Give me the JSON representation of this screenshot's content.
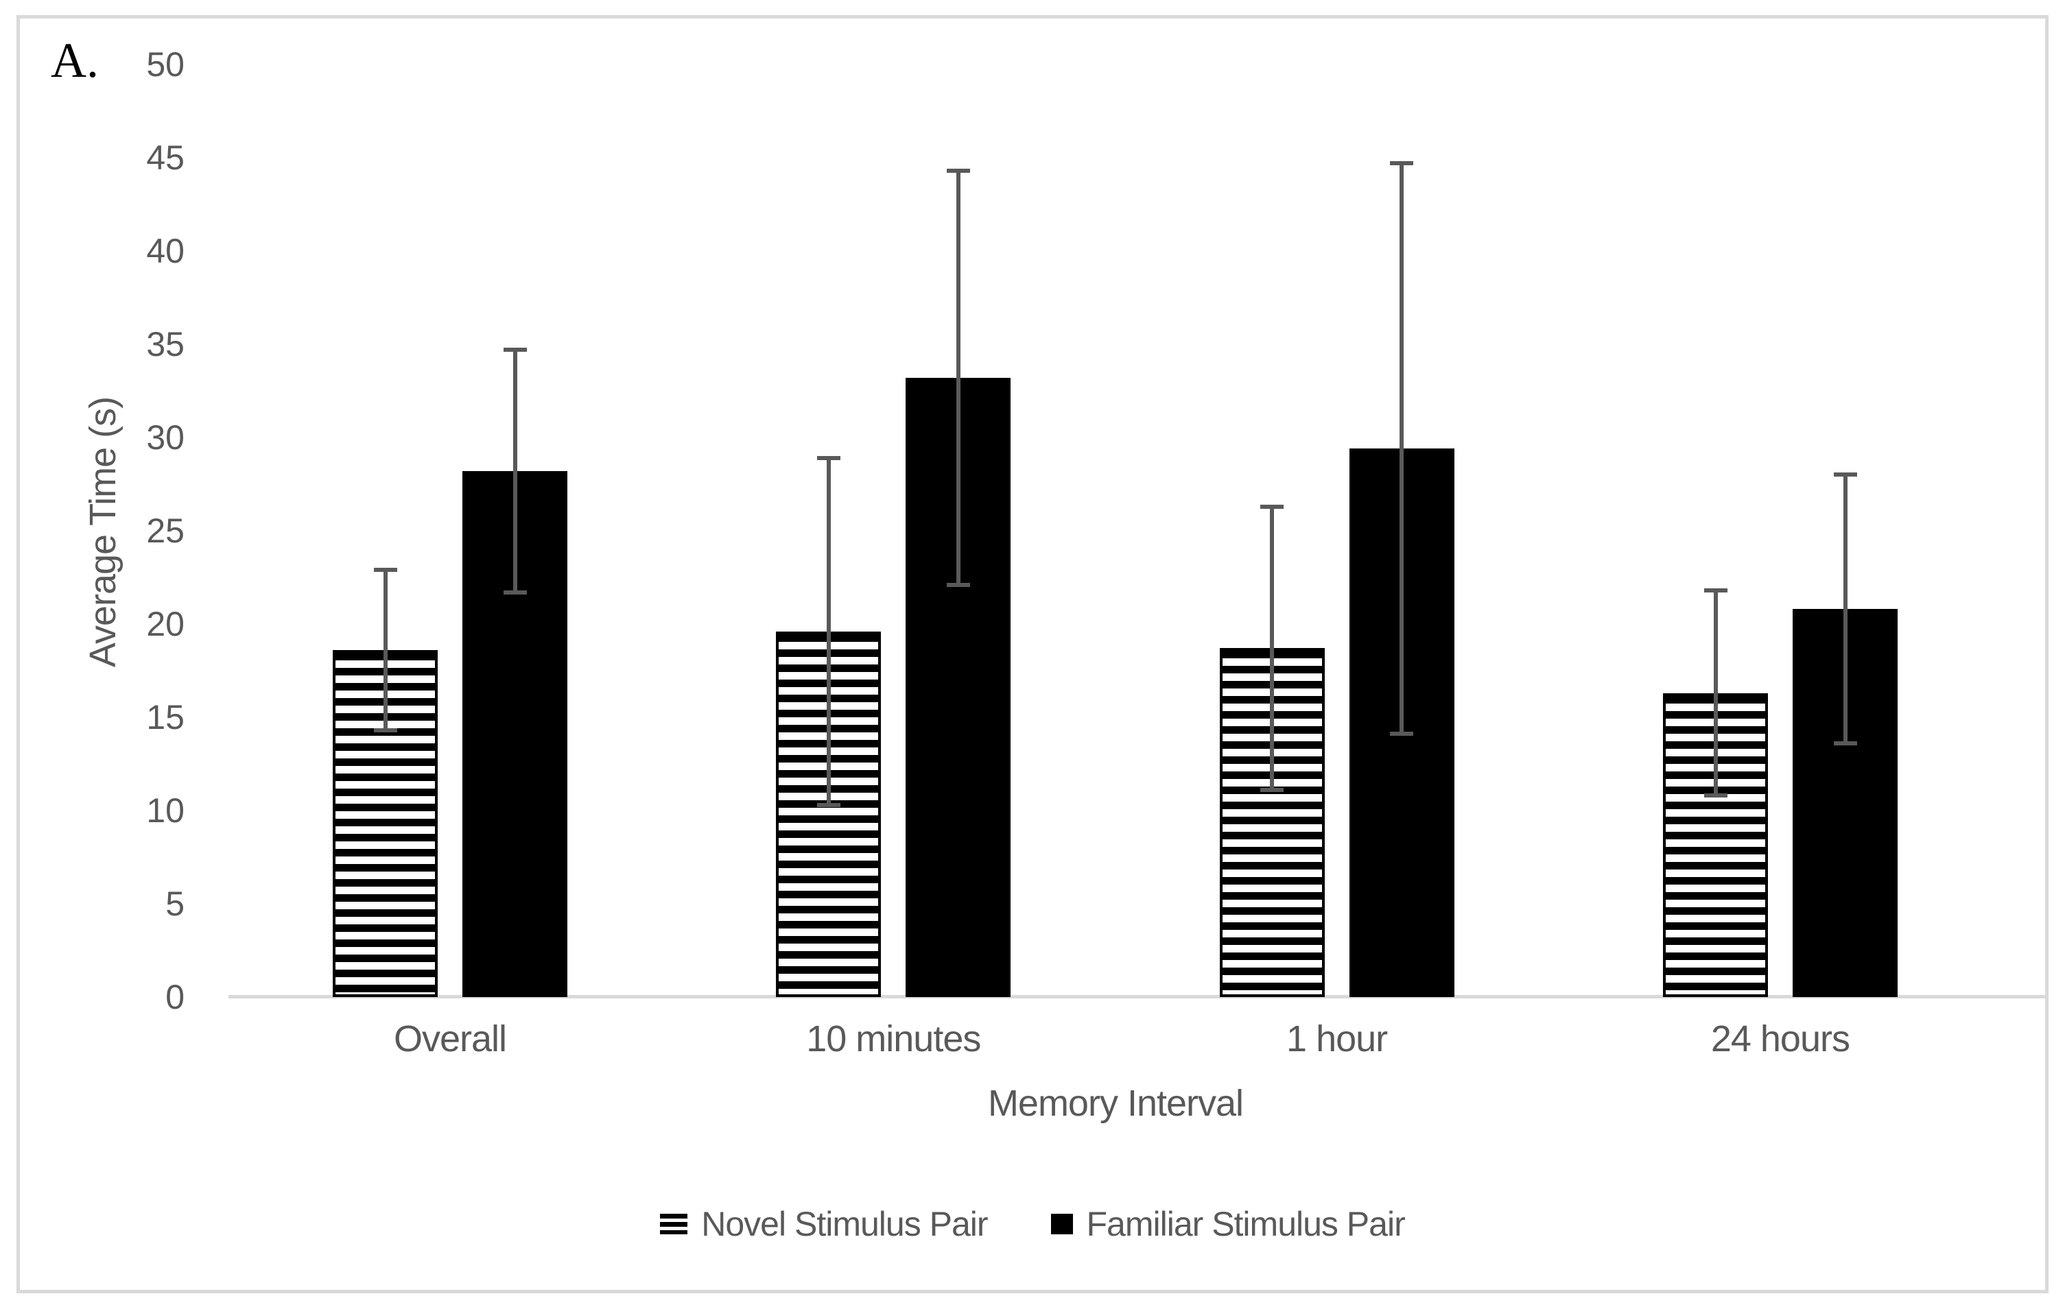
{
  "figure": {
    "panel_label": "A.",
    "border_color": "#d9d9d9"
  },
  "chart_data": {
    "type": "bar",
    "title": "",
    "xlabel": "Memory Interval",
    "ylabel": "Average Time (s)",
    "categories": [
      "Overall",
      "10 minutes",
      "1 hour",
      "24 hours"
    ],
    "series": [
      {
        "name": "Novel Stimulus Pair",
        "fill": "striped-horizontal",
        "values": [
          18.6,
          19.6,
          18.7,
          16.3
        ],
        "errors": [
          4.3,
          9.3,
          7.6,
          5.5
        ]
      },
      {
        "name": "Familiar Stimulus Pair",
        "fill": "solid-black",
        "values": [
          28.2,
          33.2,
          29.4,
          20.8
        ],
        "errors": [
          6.5,
          11.1,
          15.3,
          7.2
        ]
      }
    ],
    "ylim": [
      0,
      50
    ],
    "yticks": [
      0,
      5,
      10,
      15,
      20,
      25,
      30,
      35,
      40,
      45,
      50
    ],
    "grid": false,
    "error_bars": true,
    "legend_position": "bottom"
  },
  "colors": {
    "bar_fill": "#000000",
    "text": "#595959",
    "axis_line": "#d9d9d9",
    "error_bar": "#595959",
    "background": "#ffffff"
  }
}
